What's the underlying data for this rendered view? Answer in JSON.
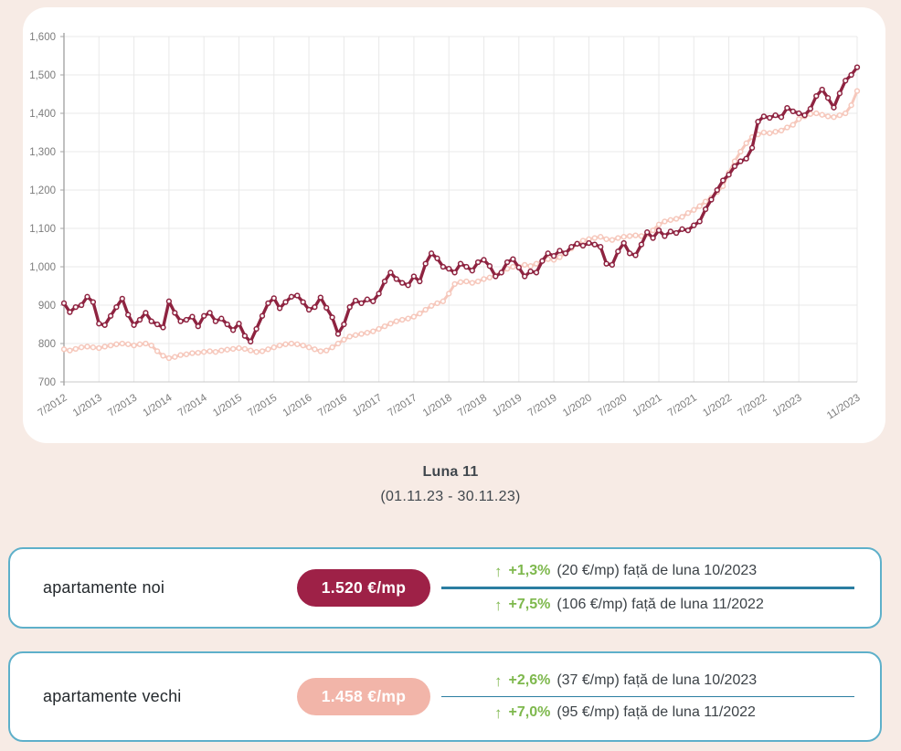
{
  "colors": {
    "page_background": "#f7ebe5",
    "card_background": "#ffffff",
    "card_border_teal": "#5eb0ca",
    "divider_teal": "#2b7da1",
    "green_positive": "#7eb84d",
    "series_noi": "#8e2340",
    "series_vechi": "#f6c8bc",
    "badge_noi": "#9e2147",
    "badge_vechi": "#f2b5a9",
    "axis_text": "#7c7c7c"
  },
  "chart_data": {
    "type": "line",
    "title": "",
    "xlabel": "",
    "ylabel": "",
    "ylim": [
      700,
      1600
    ],
    "y_ticks": [
      700,
      800,
      900,
      1000,
      1100,
      1200,
      1300,
      1400,
      1500,
      1600
    ],
    "grid": true,
    "legend_position": "none",
    "x_start_month": "7/2012",
    "x_end_month": "11/2023",
    "x_tick_labels": [
      "7/2012",
      "1/2013",
      "7/2013",
      "1/2014",
      "7/2014",
      "1/2015",
      "7/2015",
      "1/2016",
      "7/2016",
      "1/2017",
      "7/2017",
      "1/2018",
      "7/2018",
      "1/2019",
      "7/2019",
      "1/2020",
      "7/2020",
      "1/2021",
      "7/2021",
      "1/2022",
      "7/2022",
      "1/2023",
      "11/2023"
    ],
    "x_tick_indices": [
      0,
      6,
      12,
      18,
      24,
      30,
      36,
      42,
      48,
      54,
      60,
      66,
      72,
      78,
      84,
      90,
      96,
      102,
      108,
      114,
      120,
      126,
      136
    ],
    "series": [
      {
        "name": "apartamente vechi",
        "color": "#f6c8bc",
        "values": [
          785,
          782,
          786,
          790,
          792,
          790,
          788,
          792,
          795,
          798,
          800,
          798,
          795,
          798,
          800,
          795,
          780,
          768,
          762,
          765,
          770,
          772,
          775,
          776,
          778,
          780,
          778,
          782,
          784,
          786,
          788,
          786,
          782,
          778,
          780,
          785,
          790,
          795,
          798,
          800,
          798,
          795,
          790,
          785,
          780,
          782,
          790,
          800,
          810,
          818,
          822,
          825,
          828,
          832,
          838,
          845,
          852,
          858,
          862,
          865,
          870,
          878,
          888,
          898,
          905,
          910,
          930,
          955,
          960,
          962,
          958,
          962,
          968,
          972,
          978,
          985,
          995,
          1000,
          1000,
          1005,
          1002,
          1008,
          1015,
          1020,
          1018,
          1025,
          1035,
          1048,
          1060,
          1068,
          1072,
          1075,
          1078,
          1072,
          1070,
          1075,
          1078,
          1080,
          1082,
          1080,
          1085,
          1095,
          1110,
          1118,
          1122,
          1125,
          1130,
          1140,
          1148,
          1158,
          1170,
          1180,
          1195,
          1210,
          1245,
          1275,
          1300,
          1322,
          1338,
          1345,
          1350,
          1348,
          1352,
          1355,
          1363,
          1370,
          1385,
          1392,
          1398,
          1400,
          1396,
          1392,
          1390,
          1395,
          1400,
          1421,
          1458
        ]
      },
      {
        "name": "apartamente noi",
        "color": "#8e2340",
        "values": [
          905,
          882,
          895,
          900,
          922,
          908,
          852,
          848,
          872,
          895,
          917,
          875,
          848,
          862,
          880,
          858,
          850,
          842,
          910,
          880,
          858,
          862,
          870,
          845,
          872,
          880,
          858,
          865,
          850,
          835,
          852,
          820,
          805,
          838,
          872,
          905,
          918,
          892,
          908,
          922,
          925,
          908,
          888,
          895,
          920,
          893,
          868,
          825,
          850,
          895,
          912,
          905,
          915,
          910,
          930,
          962,
          985,
          968,
          958,
          952,
          975,
          962,
          1008,
          1035,
          1022,
          1000,
          995,
          985,
          1008,
          1000,
          990,
          1012,
          1018,
          1002,
          975,
          985,
          1012,
          1020,
          998,
          975,
          988,
          985,
          1015,
          1035,
          1028,
          1042,
          1035,
          1052,
          1060,
          1055,
          1062,
          1058,
          1052,
          1008,
          1005,
          1040,
          1062,
          1035,
          1030,
          1058,
          1090,
          1075,
          1095,
          1080,
          1092,
          1088,
          1098,
          1095,
          1108,
          1118,
          1150,
          1175,
          1200,
          1225,
          1240,
          1262,
          1275,
          1282,
          1310,
          1378,
          1392,
          1388,
          1395,
          1390,
          1414,
          1405,
          1400,
          1395,
          1412,
          1445,
          1462,
          1440,
          1415,
          1452,
          1485,
          1500,
          1520
        ]
      }
    ]
  },
  "period": {
    "title": "Luna 11",
    "range": "(01.11.23 - 30.11.23)"
  },
  "cards": [
    {
      "label": "apartamente noi",
      "badge": {
        "text": "1.520 €/mp",
        "bg": "#9e2147"
      },
      "stats": [
        {
          "arrow": "↑",
          "percent": "+1,3%",
          "rest": "(20 €/mp) față de luna 10/2023"
        },
        {
          "arrow": "↑",
          "percent": "+7,5%",
          "rest": "(106 €/mp) față de luna 11/2022"
        }
      ]
    },
    {
      "label": "apartamente vechi",
      "badge": {
        "text": "1.458 €/mp",
        "bg": "#f2b5a9"
      },
      "stats": [
        {
          "arrow": "↑",
          "percent": "+2,6%",
          "rest": "(37 €/mp) față de luna 10/2023"
        },
        {
          "arrow": "↑",
          "percent": "+7,0%",
          "rest": "(95 €/mp) față de luna 11/2022"
        }
      ]
    }
  ]
}
